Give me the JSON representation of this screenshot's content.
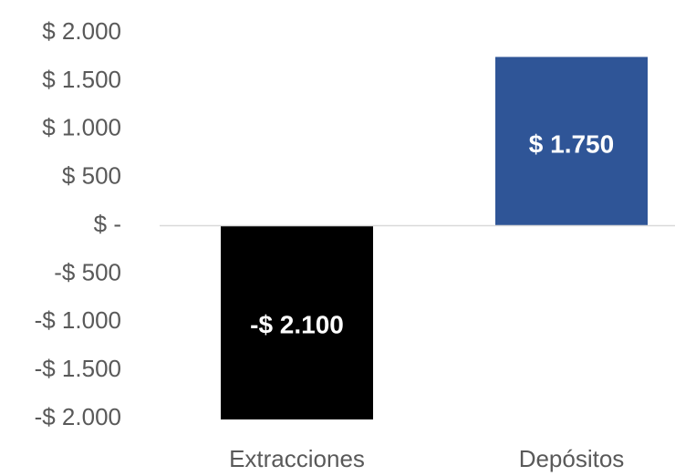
{
  "chart_data": {
    "type": "bar",
    "categories": [
      "Extracciones",
      "Depósitos"
    ],
    "values": [
      -2100,
      1750
    ],
    "value_labels": [
      "-$ 2.100",
      "$ 1.750"
    ],
    "colors": [
      "#000000",
      "#2f5597"
    ],
    "ylim": [
      -2000,
      2000
    ],
    "yticks": [
      {
        "value": 2000,
        "label": "$ 2.000"
      },
      {
        "value": 1500,
        "label": "$ 1.500"
      },
      {
        "value": 1000,
        "label": "$ 1.000"
      },
      {
        "value": 500,
        "label": "$ 500"
      },
      {
        "value": 0,
        "label": "$ -"
      },
      {
        "value": -500,
        "label": "-$ 500"
      },
      {
        "value": -1000,
        "label": "-$ 1.000"
      },
      {
        "value": -1500,
        "label": "-$ 1.500"
      },
      {
        "value": -2000,
        "label": "-$ 2.000"
      }
    ]
  }
}
